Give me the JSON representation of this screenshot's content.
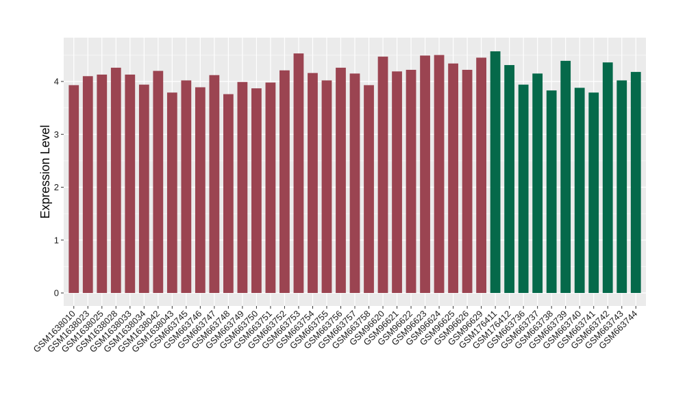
{
  "chart_data": {
    "type": "bar",
    "title": "",
    "xlabel": "",
    "ylabel": "Expression Level",
    "ylim": [
      0,
      4.7
    ],
    "yticks": [
      0,
      1,
      2,
      3,
      4
    ],
    "grid": true,
    "legend": "none",
    "categories": [
      "GSM1638010",
      "GSM1638023",
      "GSM1638025",
      "GSM1638028",
      "GSM1638033",
      "GSM1638034",
      "GSM1638042",
      "GSM1638043",
      "GSM663745",
      "GSM663746",
      "GSM663747",
      "GSM663748",
      "GSM663749",
      "GSM663750",
      "GSM663751",
      "GSM663752",
      "GSM663753",
      "GSM663754",
      "GSM663755",
      "GSM663756",
      "GSM663757",
      "GSM663758",
      "GSM96620",
      "GSM96621",
      "GSM96622",
      "GSM96623",
      "GSM96624",
      "GSM96625",
      "GSM96626",
      "GSM96629",
      "GSM176411",
      "GSM176412",
      "GSM663736",
      "GSM663737",
      "GSM663738",
      "GSM663739",
      "GSM663740",
      "GSM663741",
      "GSM663742",
      "GSM663743",
      "GSM663744"
    ],
    "values": [
      3.93,
      4.1,
      4.13,
      4.26,
      4.13,
      3.94,
      4.2,
      3.79,
      4.02,
      3.89,
      4.12,
      3.76,
      3.99,
      3.87,
      3.98,
      4.21,
      4.53,
      4.16,
      4.02,
      4.26,
      4.15,
      3.93,
      4.47,
      4.19,
      4.22,
      4.49,
      4.5,
      4.34,
      4.22,
      4.45,
      4.57,
      4.31,
      3.94,
      4.15,
      3.83,
      4.39,
      3.88,
      3.79,
      4.36,
      4.02,
      4.18
    ],
    "group_sizes": [
      30,
      11
    ],
    "colors": {
      "group1": "#9b4451",
      "group2": "#05694a",
      "panel_bg": "#ebebeb",
      "grid": "#ffffff",
      "tick": "#333333"
    }
  }
}
